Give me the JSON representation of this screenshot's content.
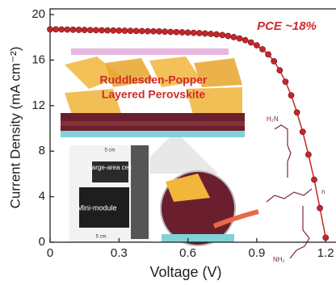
{
  "chart_data": {
    "type": "line",
    "xlabel": "Voltage (V)",
    "ylabel": "Current Density (mA cm⁻²)",
    "annotation": "PCE ~18%",
    "x": [
      0,
      0.025,
      0.05,
      0.075,
      0.1,
      0.125,
      0.15,
      0.175,
      0.2,
      0.225,
      0.25,
      0.275,
      0.3,
      0.325,
      0.35,
      0.375,
      0.4,
      0.425,
      0.45,
      0.475,
      0.5,
      0.525,
      0.55,
      0.575,
      0.6,
      0.625,
      0.65,
      0.675,
      0.7,
      0.725,
      0.75,
      0.775,
      0.8,
      0.825,
      0.85,
      0.875,
      0.9,
      0.925,
      0.95,
      0.975,
      1.0,
      1.025,
      1.05,
      1.075,
      1.1,
      1.125,
      1.15,
      1.175,
      1.2
    ],
    "values": [
      18.7,
      18.7,
      18.69,
      18.68,
      18.67,
      18.66,
      18.65,
      18.64,
      18.63,
      18.62,
      18.61,
      18.6,
      18.59,
      18.58,
      18.57,
      18.56,
      18.55,
      18.54,
      18.53,
      18.52,
      18.5,
      18.48,
      18.46,
      18.44,
      18.42,
      18.4,
      18.37,
      18.34,
      18.3,
      18.26,
      18.2,
      18.12,
      18.02,
      17.9,
      17.75,
      17.55,
      17.3,
      16.95,
      16.5,
      15.9,
      15.1,
      14.1,
      12.9,
      11.4,
      9.7,
      7.7,
      5.5,
      3.0,
      0.4
    ],
    "color": "#c0282c",
    "xlim": [
      0,
      1.245
    ],
    "ylim": [
      0,
      20.5
    ],
    "xticks": [
      0,
      0.3,
      0.6,
      0.9,
      1.2
    ],
    "yticks": [
      0,
      4,
      8,
      12,
      16,
      20
    ],
    "inset": {
      "title_line1": "Ruddlesden-Popper",
      "title_line2": "Layered Perovskite",
      "large_cell": "Large-area cell",
      "module": "Mini-module",
      "width_label": "5 cm",
      "height_label": "5 cm",
      "amine_top": "H₂N",
      "amine_bottom": "NH₂",
      "repeat": "n"
    }
  }
}
